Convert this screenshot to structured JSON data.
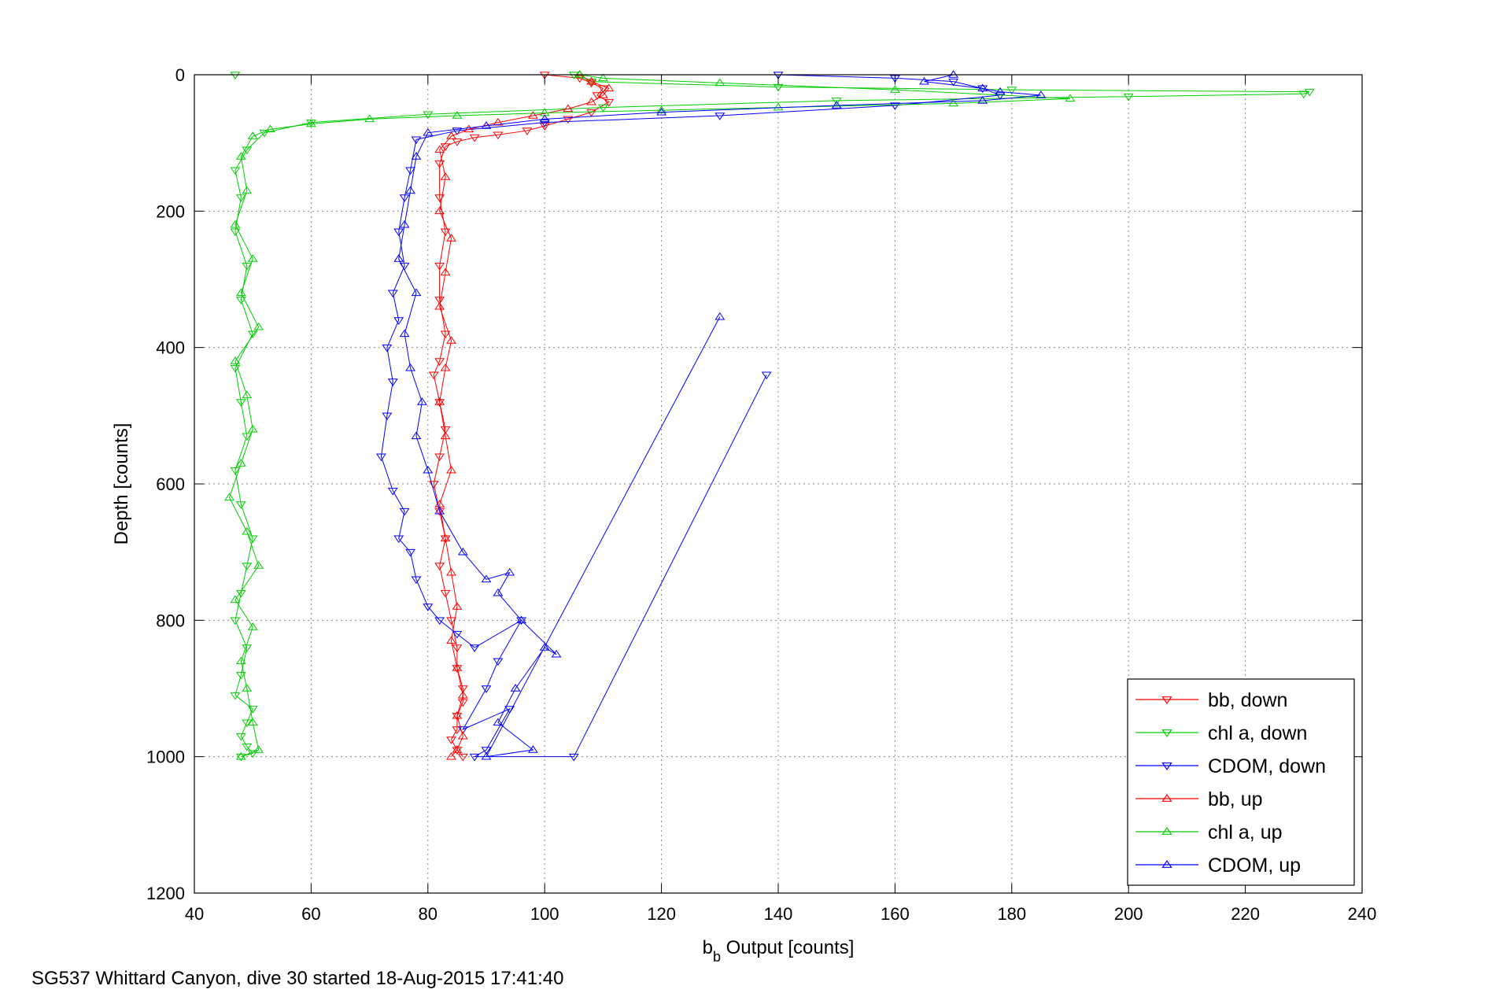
{
  "footer": {
    "caption": "SG537 Whittard Canyon, dive 30 started 18-Aug-2015 17:41:40"
  },
  "chart_data": {
    "type": "scatter",
    "title": "",
    "xlabel_main": "b",
    "xlabel_sub": "b",
    "xlabel_rest": " Output [counts]",
    "ylabel": "Depth [counts]",
    "xlim": [
      40,
      240
    ],
    "ylim": [
      1200,
      0
    ],
    "y_reversed": true,
    "grid": true,
    "legend_position": "bottom-right",
    "x_ticks": [
      "40",
      "60",
      "80",
      "100",
      "120",
      "140",
      "160",
      "180",
      "200",
      "220",
      "240"
    ],
    "y_ticks": [
      "0",
      "200",
      "400",
      "600",
      "800",
      "1000",
      "1200"
    ],
    "series": [
      {
        "name": "bb, down",
        "color": "#ff0000",
        "marker": "triangle-down",
        "x": [
          100,
          106,
          108,
          110,
          109,
          111,
          108,
          104,
          100,
          97,
          92,
          88,
          85,
          83,
          82,
          82,
          83,
          82,
          82,
          83,
          82,
          81,
          82,
          83,
          82,
          81,
          82,
          83,
          82,
          83,
          84,
          85,
          85,
          86,
          86,
          85,
          85,
          84,
          85,
          86
        ],
        "y": [
          0,
          5,
          12,
          20,
          30,
          40,
          55,
          65,
          75,
          82,
          88,
          92,
          98,
          105,
          130,
          180,
          230,
          280,
          330,
          380,
          420,
          440,
          480,
          520,
          560,
          600,
          640,
          680,
          720,
          760,
          800,
          840,
          870,
          900,
          920,
          940,
          960,
          975,
          990,
          1000
        ]
      },
      {
        "name": "chl a, down",
        "color": "#00cc00",
        "marker": "triangle-down",
        "x": [
          47,
          105,
          108,
          140,
          180,
          231,
          230,
          200,
          150,
          110,
          80,
          60,
          52,
          49,
          47,
          48,
          47,
          49,
          48,
          50,
          47,
          48,
          49,
          47,
          48,
          50,
          49,
          48,
          47,
          49,
          48,
          47,
          50,
          49,
          48,
          49,
          50,
          48
        ],
        "y": [
          0,
          0,
          10,
          18,
          22,
          25,
          28,
          32,
          38,
          48,
          58,
          70,
          85,
          110,
          140,
          180,
          230,
          280,
          330,
          380,
          430,
          480,
          530,
          580,
          630,
          680,
          720,
          760,
          800,
          840,
          880,
          910,
          930,
          950,
          970,
          985,
          995,
          1000
        ]
      },
      {
        "name": "CDOM, down",
        "color": "#0000ff",
        "marker": "triangle-down",
        "x": [
          140,
          160,
          170,
          175,
          178,
          160,
          130,
          100,
          85,
          78,
          77,
          76,
          75,
          76,
          74,
          75,
          73,
          74,
          73,
          72,
          74,
          76,
          75,
          77,
          78,
          80,
          82,
          85,
          88,
          96,
          92,
          90,
          86,
          94,
          90,
          88,
          105,
          138
        ],
        "y": [
          0,
          5,
          10,
          20,
          30,
          45,
          60,
          70,
          82,
          95,
          140,
          180,
          230,
          280,
          320,
          360,
          400,
          450,
          500,
          560,
          610,
          640,
          680,
          700,
          740,
          780,
          800,
          820,
          840,
          800,
          860,
          900,
          960,
          930,
          990,
          1000,
          1000,
          440
        ]
      },
      {
        "name": "bb, up",
        "color": "#ff0000",
        "marker": "triangle-up",
        "x": [
          106,
          108,
          111,
          110,
          108,
          104,
          98,
          92,
          87,
          84,
          82,
          83,
          82,
          84,
          83,
          82,
          84,
          83,
          82,
          83,
          84,
          82,
          83,
          84,
          85,
          84,
          85,
          86,
          85,
          86,
          85,
          84
        ],
        "y": [
          0,
          10,
          20,
          30,
          40,
          50,
          60,
          70,
          80,
          90,
          110,
          150,
          200,
          240,
          290,
          340,
          390,
          430,
          480,
          530,
          580,
          630,
          680,
          730,
          780,
          830,
          870,
          910,
          940,
          970,
          990,
          1000
        ]
      },
      {
        "name": "chl a, up",
        "color": "#00cc00",
        "marker": "triangle-up",
        "x": [
          106,
          110,
          130,
          160,
          190,
          170,
          140,
          120,
          100,
          85,
          70,
          60,
          53,
          50,
          48,
          49,
          47,
          50,
          48,
          51,
          47,
          49,
          50,
          48,
          46,
          49,
          51,
          47,
          50,
          48,
          49,
          50,
          51,
          48
        ],
        "y": [
          0,
          5,
          12,
          22,
          35,
          42,
          48,
          52,
          56,
          60,
          65,
          72,
          80,
          90,
          120,
          170,
          220,
          270,
          320,
          370,
          420,
          470,
          520,
          570,
          620,
          670,
          720,
          770,
          810,
          860,
          900,
          950,
          990,
          1000
        ]
      },
      {
        "name": "CDOM, up",
        "color": "#0000ff",
        "marker": "triangle-up",
        "x": [
          170,
          165,
          175,
          178,
          185,
          175,
          150,
          120,
          100,
          90,
          80,
          78,
          77,
          76,
          75,
          78,
          76,
          77,
          79,
          78,
          80,
          82,
          86,
          90,
          94,
          92,
          96,
          102,
          100,
          95,
          92,
          98,
          90,
          130
        ],
        "y": [
          0,
          10,
          20,
          25,
          30,
          38,
          45,
          55,
          65,
          75,
          85,
          120,
          170,
          220,
          270,
          320,
          380,
          430,
          480,
          530,
          580,
          640,
          700,
          740,
          730,
          760,
          800,
          850,
          840,
          900,
          950,
          990,
          1000,
          355
        ]
      }
    ]
  }
}
